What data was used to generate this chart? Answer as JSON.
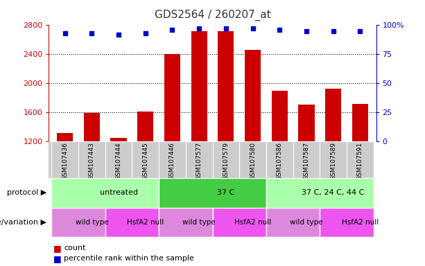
{
  "title": "GDS2564 / 260207_at",
  "samples": [
    "GSM107436",
    "GSM107443",
    "GSM107444",
    "GSM107445",
    "GSM107446",
    "GSM107577",
    "GSM107579",
    "GSM107580",
    "GSM107586",
    "GSM107587",
    "GSM107589",
    "GSM107591"
  ],
  "counts": [
    1310,
    1590,
    1240,
    1610,
    2400,
    2720,
    2720,
    2460,
    1890,
    1700,
    1920,
    1710
  ],
  "percentiles": [
    93,
    93,
    92,
    93,
    96,
    97,
    97,
    97,
    96,
    95,
    95,
    95
  ],
  "ylim_left": [
    1200,
    2800
  ],
  "ylim_right": [
    0,
    100
  ],
  "yticks_left": [
    1200,
    1600,
    2000,
    2400,
    2800
  ],
  "yticks_right": [
    0,
    25,
    50,
    75,
    100
  ],
  "bar_color": "#cc0000",
  "square_color": "#0000cc",
  "protocols": [
    {
      "label": "untreated",
      "start": 0,
      "end": 4,
      "color": "#aaffaa"
    },
    {
      "label": "37 C",
      "start": 4,
      "end": 8,
      "color": "#44cc44"
    },
    {
      "label": "37 C, 24 C, 44 C",
      "start": 8,
      "end": 12,
      "color": "#aaffaa"
    }
  ],
  "genotypes": [
    {
      "label": "wild type",
      "start": 0,
      "end": 2,
      "color": "#dd88dd"
    },
    {
      "label": "HsfA2 null",
      "start": 2,
      "end": 4,
      "color": "#ee55ee"
    },
    {
      "label": "wild type",
      "start": 4,
      "end": 6,
      "color": "#dd88dd"
    },
    {
      "label": "HsfA2 null",
      "start": 6,
      "end": 8,
      "color": "#ee55ee"
    },
    {
      "label": "wild type",
      "start": 8,
      "end": 10,
      "color": "#dd88dd"
    },
    {
      "label": "HsfA2 null",
      "start": 10,
      "end": 12,
      "color": "#ee55ee"
    }
  ],
  "row_label_protocol": "protocol",
  "row_label_genotype": "genotype/variation",
  "legend_count": "count",
  "legend_percentile": "percentile rank within the sample",
  "title_color": "#333333",
  "left_axis_color": "#cc0000",
  "right_axis_color": "#0000cc",
  "sample_bg_color": "#cccccc",
  "fig_bg": "#ffffff"
}
